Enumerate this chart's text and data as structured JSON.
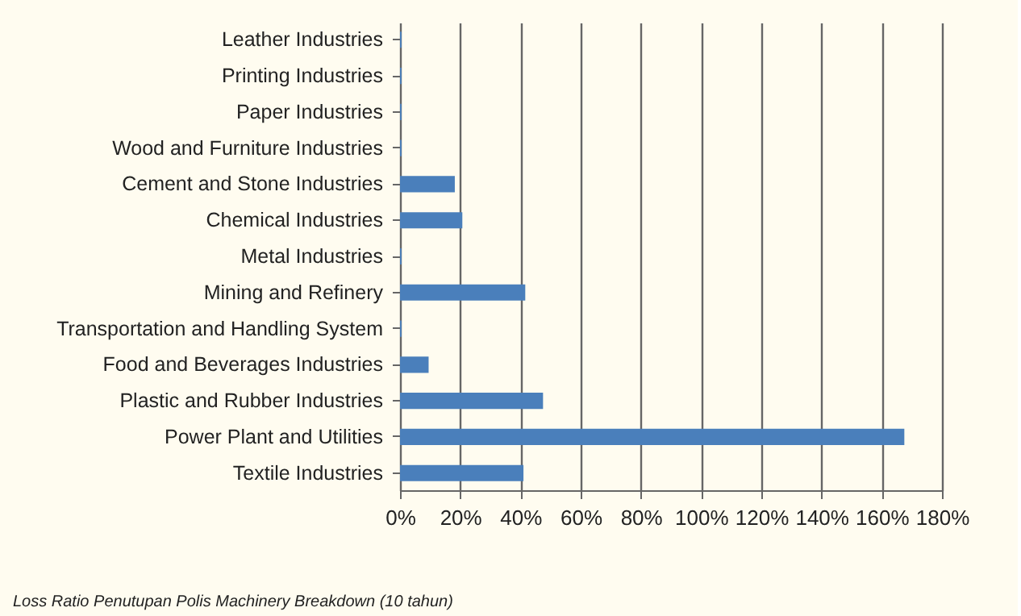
{
  "chart_data": {
    "type": "bar",
    "orientation": "horizontal",
    "categories": [
      "Leather Industries",
      "Printing Industries",
      "Paper Industries",
      "Wood and Furniture Industries",
      "Cement and Stone Industries",
      "Chemical Industries",
      "Metal Industries",
      "Mining and Refinery",
      "Transportation and Handling System",
      "Food and Beverages Industries",
      "Plastic and Rubber Industries",
      "Power Plant and Utilities",
      "Textile Industries"
    ],
    "values": [
      0.5,
      0.5,
      0.5,
      0.5,
      18.2,
      20.7,
      0.5,
      41.6,
      0.5,
      9.5,
      47.5,
      167.5,
      41
    ],
    "color": "#4a7fbb",
    "xlim": [
      0,
      180
    ],
    "xticks": [
      {
        "value": 0,
        "label": "0%"
      },
      {
        "value": 20,
        "label": "20%"
      },
      {
        "value": 40,
        "label": "40%"
      },
      {
        "value": 60,
        "label": "60%"
      },
      {
        "value": 80,
        "label": "80%"
      },
      {
        "value": 100,
        "label": "100%"
      },
      {
        "value": 120,
        "label": "120%"
      },
      {
        "value": 140,
        "label": "140%"
      },
      {
        "value": 160,
        "label": "160%"
      },
      {
        "value": 180,
        "label": "180%"
      }
    ],
    "grid": "x",
    "annotations": [
      "Loss Ratio Penutupan Polis Machinery Breakdown (10 tahun)"
    ]
  }
}
